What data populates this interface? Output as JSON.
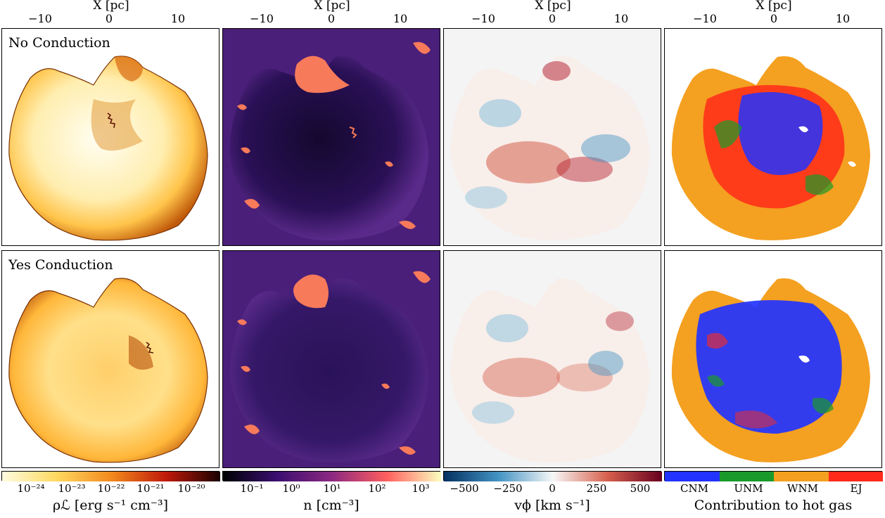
{
  "axis_title": "X [pc]",
  "x_ticks": [
    "−10",
    "0",
    "10"
  ],
  "rows": [
    {
      "label": "No Conduction"
    },
    {
      "label": "Yes Conduction"
    }
  ],
  "colorbars": [
    {
      "name": "luminosity",
      "ticks": [
        "10⁻²⁴",
        "10⁻²³",
        "10⁻²²",
        "10⁻²¹",
        "10⁻²⁰"
      ],
      "label": "ρℒ [erg s⁻¹ cm⁻³]"
    },
    {
      "name": "density",
      "ticks": [
        "10⁻¹",
        "10⁰",
        "10¹",
        "10²",
        "10³"
      ],
      "label": "n [cm⁻³]"
    },
    {
      "name": "velocity",
      "ticks": [
        "−500",
        "−250",
        "0",
        "250",
        "500"
      ],
      "label": "vϕ [km s⁻¹]"
    },
    {
      "name": "contribution",
      "ticks": [
        "CNM",
        "UNM",
        "WNM",
        "EJ"
      ],
      "label": "Contribution to hot gas"
    }
  ],
  "colors": {
    "cnm": "#2233ff",
    "unm": "#1a9a2a",
    "wnm": "#f4a020",
    "ej": "#ff2a1a",
    "density_bg": "#4a1f7a",
    "density_dark": "#1c0a3c"
  }
}
